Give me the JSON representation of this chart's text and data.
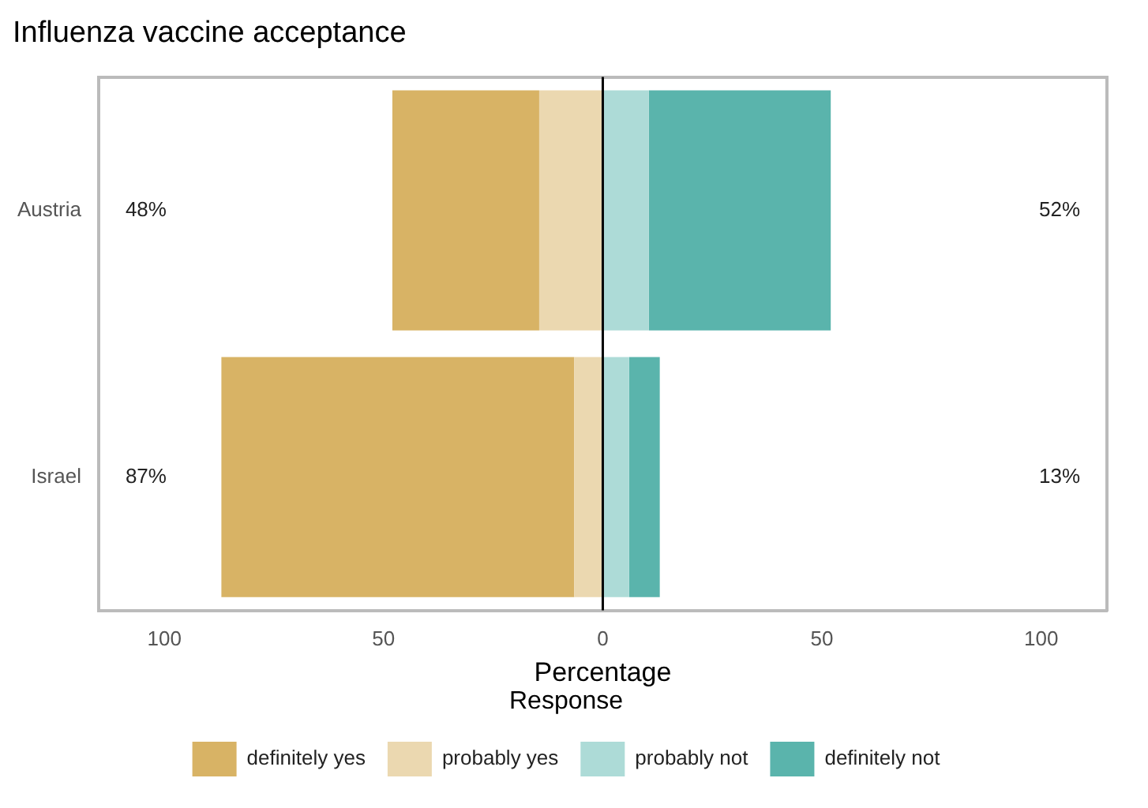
{
  "chart_data": {
    "type": "bar",
    "orientation": "horizontal",
    "stacked": true,
    "title": "Influenza vaccine acceptance",
    "xlabel": "Percentage",
    "legend_title": "Response",
    "legend": "bottom",
    "grid": false,
    "categories": [
      "Austria",
      "Israel"
    ],
    "series": [
      {
        "name": "probably yes",
        "color": "#ebd8b0",
        "values": [
          -14.5,
          -6.5
        ]
      },
      {
        "name": "definitely yes",
        "color": "#d8b365",
        "values": [
          -33.5,
          -80.5
        ]
      },
      {
        "name": "probably not",
        "color": "#addbd7",
        "values": [
          10.5,
          6
        ]
      },
      {
        "name": "definitely not",
        "color": "#5ab4ac",
        "values": [
          41.5,
          7
        ]
      }
    ],
    "xlim": [
      -115,
      115
    ],
    "xticks": [
      {
        "value": -100,
        "label": "100"
      },
      {
        "value": -50,
        "label": "50"
      },
      0,
      50,
      {
        "value": 100,
        "label": "100"
      }
    ],
    "ref_lines": [
      {
        "axis": "x",
        "value": 0,
        "color": "#000000"
      }
    ],
    "annotations": [
      "48%",
      "52%",
      "87%",
      "13%"
    ]
  }
}
